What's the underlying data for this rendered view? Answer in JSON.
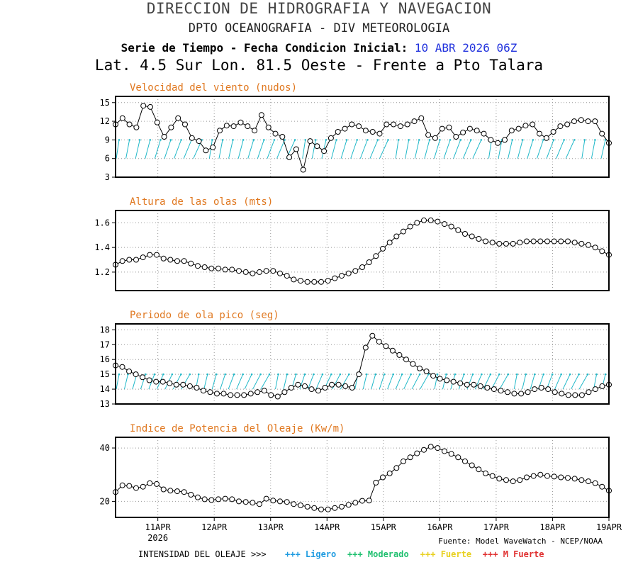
{
  "header": {
    "title": "DIRECCION DE HIDROGRAFIA Y NAVEGACION",
    "subtitle": "DPTO OCEANOGRAFIA - DIV METEOROLOGIA",
    "series_label": "Serie de Tiempo - Fecha Condicion Inicial:",
    "init_date": "10 ABR 2026 06Z",
    "location": "Lat. 4.5 Sur  Lon. 81.5 Oeste - Frente a Pto Talara"
  },
  "x_axis": {
    "ticks": [
      {
        "pos": 0.75,
        "label": "11APR"
      },
      {
        "pos": 1.75,
        "label": "12APR"
      },
      {
        "pos": 2.75,
        "label": "13APR"
      },
      {
        "pos": 3.75,
        "label": "14APR"
      },
      {
        "pos": 4.75,
        "label": "15APR"
      },
      {
        "pos": 5.75,
        "label": "16APR"
      },
      {
        "pos": 6.75,
        "label": "17APR"
      },
      {
        "pos": 7.75,
        "label": "18APR"
      },
      {
        "pos": 8.75,
        "label": "19APR"
      }
    ],
    "year": "2026",
    "range": [
      0,
      8.75
    ]
  },
  "source": "Fuente: Model WaveWatch - NCEP/NOAA",
  "legend": {
    "prefix": "INTENSIDAD DEL OLEAJE >>>",
    "items": [
      {
        "label": "+++ Ligero",
        "color": "#1e9be0"
      },
      {
        "label": "+++ Moderado",
        "color": "#20c070"
      },
      {
        "label": "+++ Fuerte",
        "color": "#e8d020"
      },
      {
        "label": "+++ M Fuerte",
        "color": "#e03030"
      }
    ]
  },
  "colors": {
    "line": "#000000",
    "arrows": "#20b8c8",
    "panel_title": "#e07820"
  },
  "chart_data": [
    {
      "type": "line",
      "title": "Velocidad del viento (nudos)",
      "ylim": [
        3,
        16
      ],
      "yticks": [
        3,
        6,
        9,
        12,
        15
      ],
      "grid": true,
      "values": [
        11.5,
        12.5,
        11.5,
        11,
        14.5,
        14.3,
        11.8,
        9.5,
        11,
        12.5,
        11.5,
        9.3,
        8.8,
        7.3,
        7.8,
        10.5,
        11.3,
        11.2,
        11.8,
        11.2,
        10.5,
        13,
        11,
        10,
        9.5,
        6.2,
        7.5,
        4.2,
        8.8,
        8,
        7.2,
        9.3,
        10.3,
        10.8,
        11.5,
        11.2,
        10.5,
        10.3,
        10,
        11.5,
        11.5,
        11.2,
        11.5,
        12,
        12.5,
        9.8,
        9.3,
        10.8,
        11,
        9.5,
        10.2,
        10.8,
        10.5,
        10,
        9,
        8.5,
        9,
        10.5,
        10.8,
        11.3,
        11.5,
        10,
        9.3,
        10.3,
        11.2,
        11.5,
        12,
        12.2,
        12,
        12,
        10,
        8.5
      ],
      "arrows": {
        "band": [
          6,
          9
        ],
        "count": 48
      }
    },
    {
      "type": "line",
      "title": "Altura de las olas (mts)",
      "ylim": [
        1.05,
        1.7
      ],
      "yticks": [
        1.2,
        1.4,
        1.6
      ],
      "grid": true,
      "values": [
        1.26,
        1.29,
        1.3,
        1.3,
        1.32,
        1.34,
        1.34,
        1.31,
        1.3,
        1.29,
        1.29,
        1.27,
        1.25,
        1.24,
        1.23,
        1.23,
        1.22,
        1.22,
        1.21,
        1.2,
        1.19,
        1.2,
        1.21,
        1.21,
        1.19,
        1.17,
        1.14,
        1.13,
        1.12,
        1.12,
        1.12,
        1.13,
        1.15,
        1.17,
        1.19,
        1.21,
        1.24,
        1.28,
        1.33,
        1.39,
        1.44,
        1.49,
        1.53,
        1.57,
        1.6,
        1.62,
        1.62,
        1.61,
        1.59,
        1.57,
        1.54,
        1.51,
        1.49,
        1.47,
        1.45,
        1.44,
        1.43,
        1.43,
        1.43,
        1.44,
        1.45,
        1.45,
        1.45,
        1.45,
        1.45,
        1.45,
        1.45,
        1.44,
        1.43,
        1.42,
        1.4,
        1.37,
        1.34
      ]
    },
    {
      "type": "line",
      "title": "Periodo de ola pico (seg)",
      "ylim": [
        13,
        18.4
      ],
      "yticks": [
        13,
        14,
        15,
        16,
        17,
        18
      ],
      "grid": true,
      "values": [
        15.6,
        15.5,
        15.2,
        15,
        14.8,
        14.6,
        14.5,
        14.5,
        14.4,
        14.3,
        14.3,
        14.2,
        14.1,
        13.9,
        13.8,
        13.7,
        13.7,
        13.6,
        13.6,
        13.6,
        13.7,
        13.8,
        13.9,
        13.6,
        13.5,
        13.8,
        14.1,
        14.3,
        14.2,
        14,
        13.9,
        14.1,
        14.3,
        14.3,
        14.2,
        14.1,
        15,
        16.8,
        17.6,
        17.2,
        16.9,
        16.6,
        16.3,
        16,
        15.7,
        15.4,
        15.2,
        14.9,
        14.7,
        14.6,
        14.5,
        14.4,
        14.3,
        14.3,
        14.2,
        14.1,
        14,
        13.9,
        13.8,
        13.7,
        13.7,
        13.8,
        14,
        14.1,
        14,
        13.8,
        13.7,
        13.6,
        13.6,
        13.6,
        13.8,
        14,
        14.2,
        14.3
      ],
      "arrows": {
        "band": [
          14,
          15
        ],
        "count": 56
      }
    },
    {
      "type": "line",
      "title": "Indice de Potencia del Oleaje (Kw/m)",
      "ylim": [
        14,
        44
      ],
      "yticks": [
        20,
        40
      ],
      "grid": true,
      "values": [
        23.5,
        26,
        25.8,
        25,
        25.5,
        26.8,
        26.5,
        24.5,
        24,
        23.8,
        23.5,
        22.5,
        21.5,
        20.8,
        20.5,
        20.8,
        21,
        20.8,
        20,
        19.8,
        19.5,
        19,
        21,
        20.3,
        20,
        19.8,
        19,
        18.5,
        18,
        17.5,
        17,
        17,
        17.5,
        18,
        18.7,
        19.5,
        20.2,
        20.3,
        27,
        29,
        30.5,
        32.5,
        35,
        36.5,
        38,
        39.3,
        40.5,
        40,
        38.8,
        37.8,
        36.5,
        35,
        33.5,
        32,
        30.5,
        29.5,
        28.5,
        28,
        27.5,
        28,
        29,
        29.5,
        30,
        29.5,
        29.3,
        29,
        28.8,
        28.5,
        28,
        27.5,
        26.8,
        25.5,
        24
      ]
    }
  ]
}
